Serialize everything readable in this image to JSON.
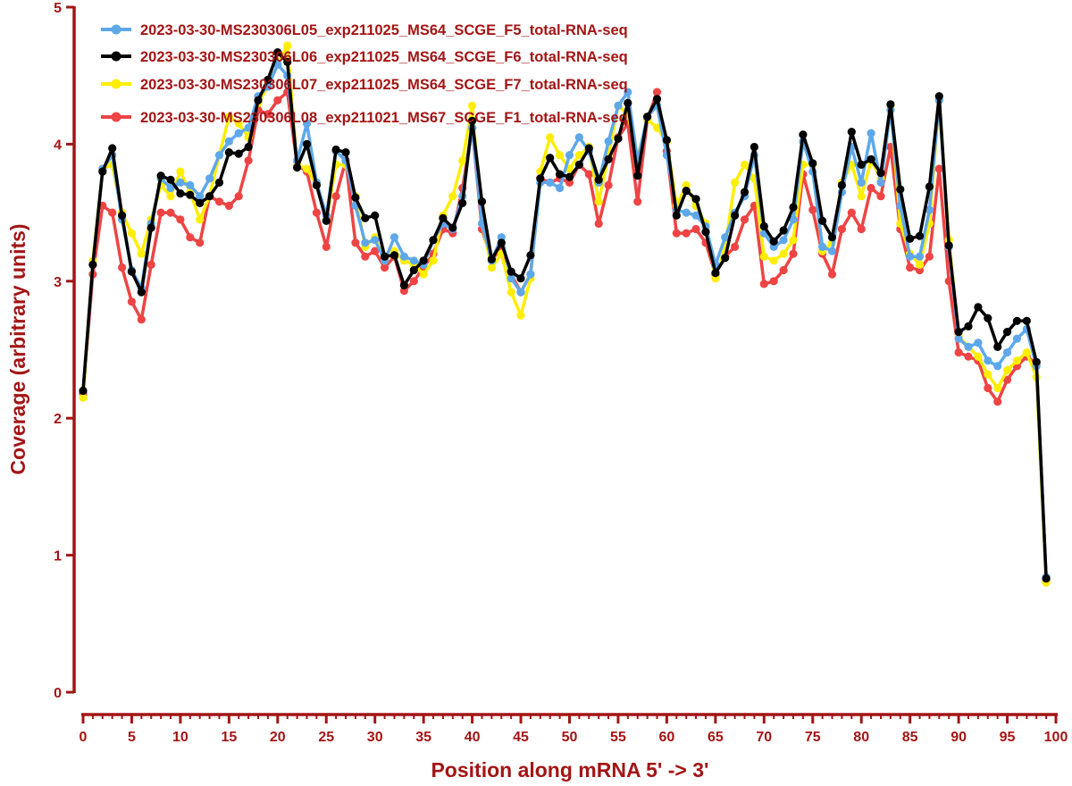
{
  "chart_data": {
    "type": "line",
    "xlabel": "Position along mRNA 5' -> 3'",
    "ylabel": "Coverage (arbitrary units)",
    "xlim": [
      0,
      100
    ],
    "ylim": [
      0,
      5
    ],
    "x_ticks": [
      "0",
      "5",
      "10",
      "15",
      "20",
      "25",
      "30",
      "35",
      "40",
      "45",
      "50",
      "55",
      "60",
      "65",
      "70",
      "75",
      "80",
      "85",
      "90",
      "95",
      "100"
    ],
    "y_ticks": [
      "0",
      "1",
      "2",
      "3",
      "4",
      "5"
    ],
    "grid": false,
    "legend_position": "top-left",
    "x": [
      0,
      1,
      2,
      3,
      4,
      5,
      6,
      7,
      8,
      9,
      10,
      11,
      12,
      13,
      14,
      15,
      16,
      17,
      18,
      19,
      20,
      21,
      22,
      23,
      24,
      25,
      26,
      27,
      28,
      29,
      30,
      31,
      32,
      33,
      34,
      35,
      36,
      37,
      38,
      39,
      40,
      41,
      42,
      43,
      44,
      45,
      46,
      47,
      48,
      49,
      50,
      51,
      52,
      53,
      54,
      55,
      56,
      57,
      58,
      59,
      60,
      61,
      62,
      63,
      64,
      65,
      66,
      67,
      68,
      69,
      70,
      71,
      72,
      73,
      74,
      75,
      76,
      77,
      78,
      79,
      80,
      81,
      82,
      83,
      84,
      85,
      86,
      87,
      88,
      89,
      90,
      91,
      92,
      93,
      94,
      95,
      96,
      97,
      98,
      99
    ],
    "series": [
      {
        "name": "2023-03-30-MS230306L05_exp211025_MS64_SCGE_F5_total-RNA-seq",
        "color": "#5ea8ea",
        "values": [
          2.2,
          3.12,
          3.82,
          3.92,
          3.45,
          3.08,
          2.95,
          3.42,
          3.75,
          3.68,
          3.72,
          3.7,
          3.62,
          3.75,
          3.92,
          4.02,
          4.08,
          4.12,
          4.35,
          4.42,
          4.58,
          4.5,
          3.88,
          4.15,
          3.72,
          3.48,
          3.95,
          3.88,
          3.55,
          3.28,
          3.3,
          3.15,
          3.32,
          3.18,
          3.15,
          3.12,
          3.3,
          3.42,
          3.38,
          3.62,
          4.12,
          3.42,
          3.15,
          3.32,
          3.02,
          2.92,
          3.05,
          3.72,
          3.72,
          3.68,
          3.92,
          4.05,
          3.95,
          3.72,
          4.02,
          4.28,
          4.38,
          3.88,
          4.2,
          4.28,
          3.92,
          3.52,
          3.5,
          3.48,
          3.4,
          3.12,
          3.32,
          3.5,
          3.62,
          3.92,
          3.35,
          3.25,
          3.3,
          3.45,
          4.02,
          3.8,
          3.25,
          3.22,
          3.65,
          3.98,
          3.72,
          4.08,
          3.72,
          4.25,
          3.55,
          3.18,
          3.18,
          3.52,
          4.32,
          3.25,
          2.58,
          2.52,
          2.55,
          2.42,
          2.38,
          2.48,
          2.58,
          2.65,
          2.38,
          0.84
        ]
      },
      {
        "name": "2023-03-30-MS230306L06_exp211025_MS64_SCGE_F6_total-RNA-seq",
        "color": "#000000",
        "values": [
          2.2,
          3.12,
          3.8,
          3.97,
          3.48,
          3.07,
          2.92,
          3.39,
          3.77,
          3.74,
          3.64,
          3.63,
          3.57,
          3.62,
          3.72,
          3.94,
          3.93,
          3.98,
          4.32,
          4.47,
          4.67,
          4.6,
          3.83,
          4.0,
          3.7,
          3.44,
          3.96,
          3.94,
          3.61,
          3.46,
          3.48,
          3.18,
          3.19,
          2.97,
          3.08,
          3.15,
          3.3,
          3.46,
          3.39,
          3.57,
          4.17,
          3.58,
          3.16,
          3.28,
          3.07,
          3.02,
          3.19,
          3.75,
          3.9,
          3.78,
          3.76,
          3.85,
          3.97,
          3.74,
          3.89,
          4.04,
          4.3,
          3.77,
          4.2,
          4.33,
          4.03,
          3.48,
          3.66,
          3.6,
          3.36,
          3.06,
          3.17,
          3.48,
          3.65,
          3.98,
          3.4,
          3.29,
          3.37,
          3.54,
          4.07,
          3.86,
          3.44,
          3.32,
          3.7,
          4.09,
          3.85,
          3.89,
          3.79,
          4.29,
          3.67,
          3.31,
          3.33,
          3.69,
          4.35,
          3.26,
          2.63,
          2.67,
          2.81,
          2.73,
          2.52,
          2.63,
          2.71,
          2.71,
          2.41,
          0.83
        ]
      },
      {
        "name": "2023-03-30-MS230306L07_exp211025_MS64_SCGE_F7_total-RNA-seq",
        "color": "#ffee00",
        "values": [
          2.15,
          3.15,
          3.82,
          3.85,
          3.5,
          3.35,
          3.2,
          3.45,
          3.7,
          3.62,
          3.8,
          3.65,
          3.45,
          3.62,
          3.92,
          4.2,
          4.15,
          4.05,
          4.3,
          4.42,
          4.58,
          4.72,
          3.85,
          3.82,
          3.7,
          3.45,
          3.85,
          3.85,
          3.62,
          3.25,
          3.32,
          3.15,
          3.22,
          3.15,
          3.12,
          3.05,
          3.15,
          3.48,
          3.62,
          3.88,
          4.28,
          3.42,
          3.1,
          3.2,
          2.92,
          2.75,
          3.02,
          3.8,
          4.05,
          3.92,
          3.82,
          3.92,
          3.98,
          3.58,
          3.92,
          4.28,
          4.22,
          3.9,
          4.18,
          4.12,
          4.02,
          3.55,
          3.7,
          3.55,
          3.42,
          3.02,
          3.25,
          3.72,
          3.85,
          3.75,
          3.18,
          3.15,
          3.2,
          3.3,
          3.85,
          3.85,
          3.22,
          3.28,
          3.72,
          3.85,
          3.62,
          3.88,
          3.75,
          4.28,
          3.42,
          3.2,
          3.12,
          3.42,
          4.32,
          3.3,
          2.6,
          2.52,
          2.45,
          2.32,
          2.22,
          2.35,
          2.42,
          2.48,
          2.3,
          0.8
        ]
      },
      {
        "name": "2023-03-30-MS230306L08_exp211021_MS67_SCGE_F1_total-RNA-seq",
        "color": "#ee4444",
        "values": [
          2.18,
          3.05,
          3.55,
          3.5,
          3.1,
          2.85,
          2.72,
          3.12,
          3.5,
          3.5,
          3.45,
          3.32,
          3.28,
          3.62,
          3.58,
          3.55,
          3.62,
          3.88,
          4.25,
          4.22,
          4.32,
          4.38,
          3.85,
          3.8,
          3.5,
          3.25,
          3.62,
          3.88,
          3.28,
          3.18,
          3.22,
          3.1,
          3.18,
          2.93,
          3.0,
          3.1,
          3.2,
          3.38,
          3.35,
          3.68,
          4.12,
          3.38,
          3.15,
          3.25,
          3.05,
          2.92,
          3.05,
          3.75,
          3.72,
          3.75,
          3.72,
          3.85,
          3.78,
          3.42,
          3.7,
          4.05,
          4.15,
          3.58,
          4.18,
          4.38,
          3.95,
          3.35,
          3.35,
          3.38,
          3.28,
          3.05,
          3.18,
          3.25,
          3.45,
          3.55,
          2.98,
          3.0,
          3.08,
          3.2,
          3.78,
          3.52,
          3.2,
          3.05,
          3.38,
          3.5,
          3.38,
          3.68,
          3.62,
          3.98,
          3.38,
          3.1,
          3.08,
          3.18,
          3.82,
          3.0,
          2.48,
          2.45,
          2.42,
          2.22,
          2.12,
          2.28,
          2.38,
          2.45,
          2.4,
          0.82
        ]
      }
    ]
  }
}
